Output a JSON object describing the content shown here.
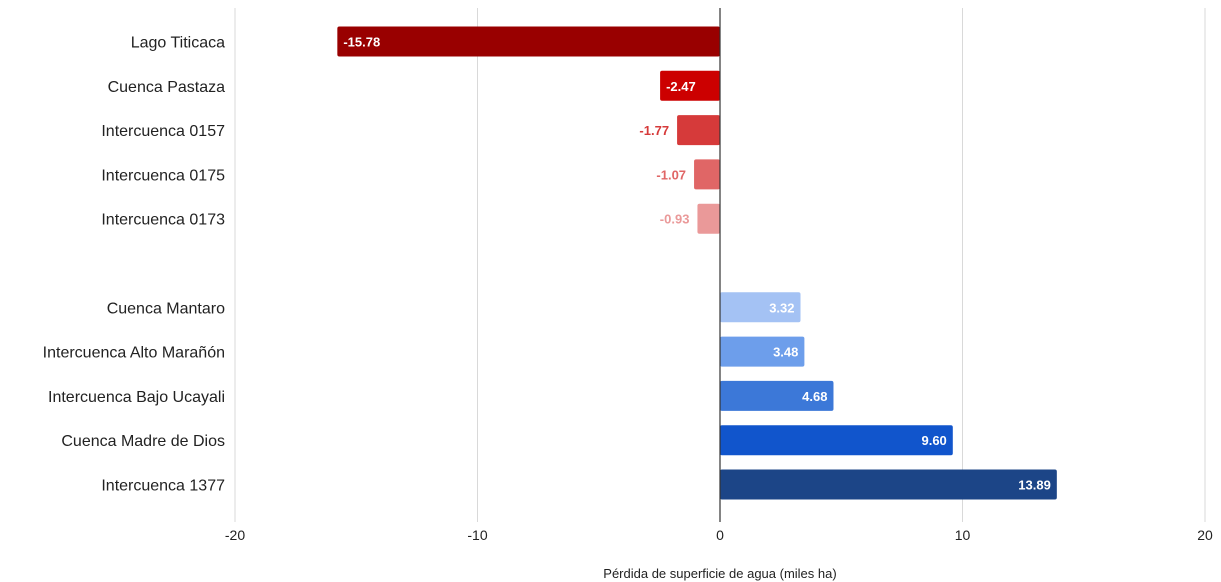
{
  "chart_data": {
    "type": "bar",
    "orientation": "horizontal",
    "title": "",
    "xlabel": "Pérdida de superficie de agua (miles ha)",
    "ylabel": "",
    "xlim": [
      -20,
      20
    ],
    "xticks": [
      -20,
      -10,
      0,
      10,
      20
    ],
    "grid": true,
    "legend": "none",
    "groups": [
      {
        "categories": [
          "Lago Titicaca",
          "Cuenca Pastaza",
          "Intercuenca 0157",
          "Intercuenca 0175",
          "Intercuenca 0173"
        ],
        "values": [
          -15.78,
          -2.47,
          -1.77,
          -1.07,
          -0.93
        ],
        "labels": [
          "-15.78",
          "-2.47",
          "-1.77",
          "-1.07",
          "-0.93"
        ],
        "colors": [
          "#990000",
          "#cc0000",
          "#d63a3a",
          "#e06666",
          "#ea9999"
        ]
      },
      {
        "categories": [
          "Cuenca Mantaro",
          "Intercuenca Alto Marañón",
          "Intercuenca Bajo Ucayali",
          "Cuenca Madre de Dios",
          "Intercuenca 1377"
        ],
        "values": [
          3.32,
          3.48,
          4.68,
          9.6,
          13.89
        ],
        "labels": [
          "3.32",
          "3.48",
          "4.68",
          "9.60",
          "13.89"
        ],
        "colors": [
          "#a4c2f4",
          "#6d9eeb",
          "#3c78d8",
          "#1155cc",
          "#1c4587"
        ]
      }
    ]
  }
}
